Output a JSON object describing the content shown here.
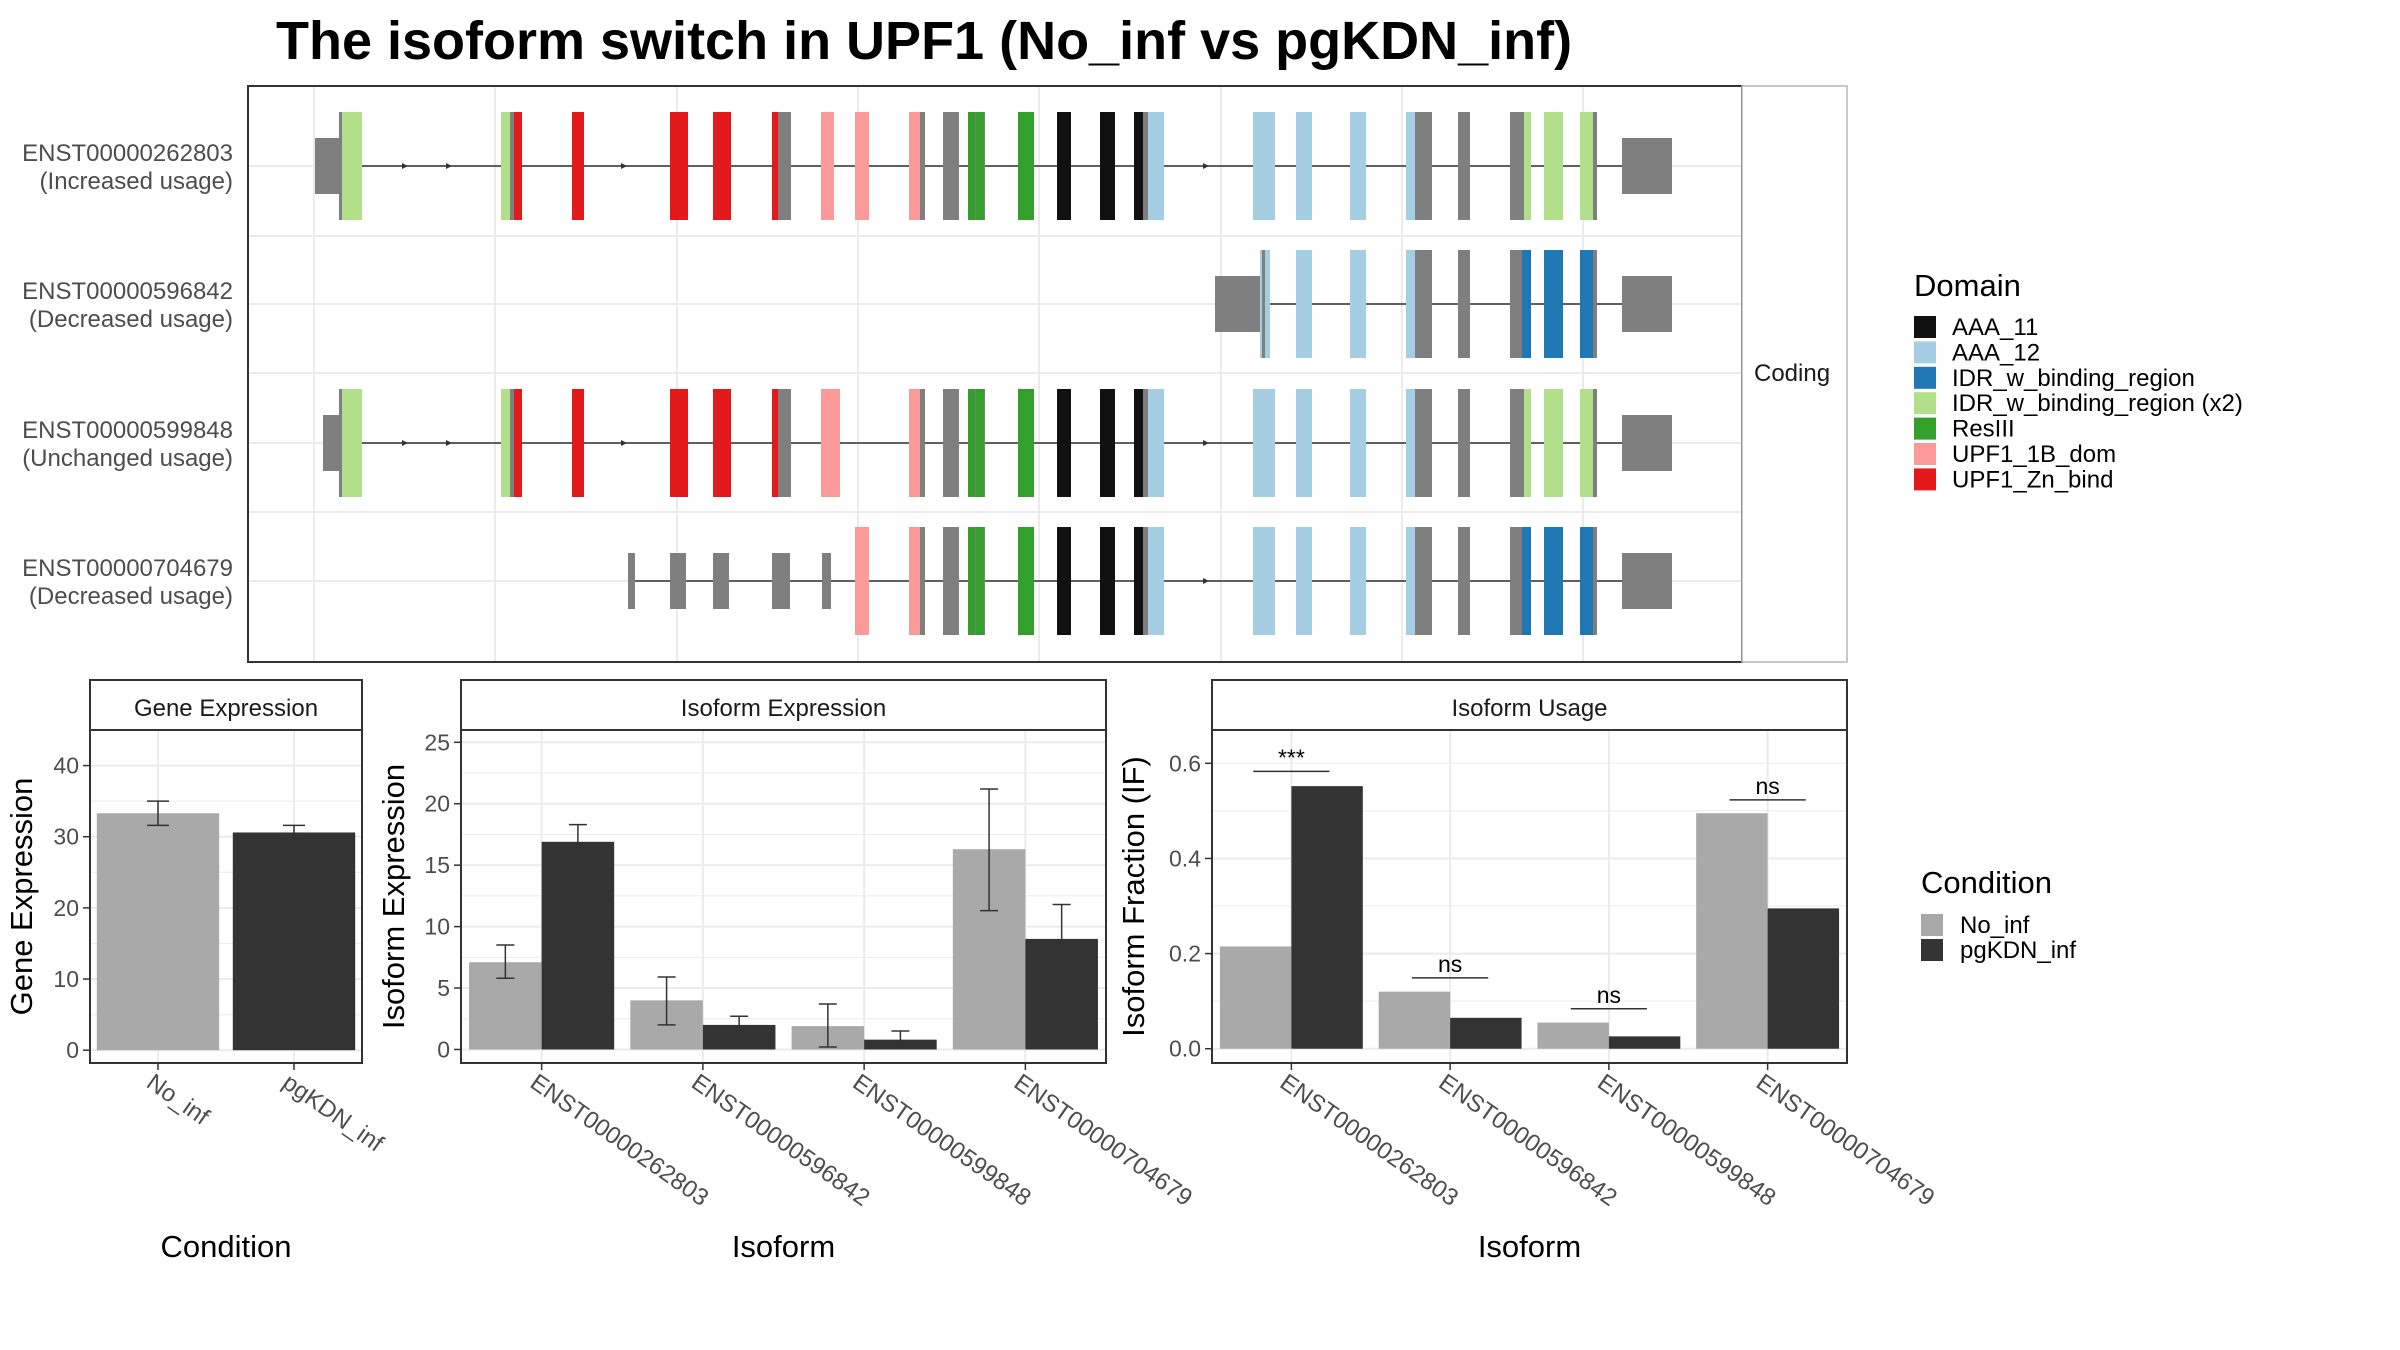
{
  "title": "The isoform switch in UPF1 (No_inf vs pgKDN_inf)",
  "transcripts": [
    {
      "id": "ENST00000262803",
      "usage": "(Increased usage)"
    },
    {
      "id": "ENST00000596842",
      "usage": "(Decreased usage)"
    },
    {
      "id": "ENST00000599848",
      "usage": "(Unchanged usage)"
    },
    {
      "id": "ENST00000704679",
      "usage": "(Decreased usage)"
    }
  ],
  "facet_label": "Coding",
  "domain_legend": {
    "title": "Domain",
    "items": [
      {
        "label": "AAA_11",
        "color": "#111111"
      },
      {
        "label": "AAA_12",
        "color": "#a6cee3"
      },
      {
        "label": "IDR_w_binding_region",
        "color": "#1f78b4"
      },
      {
        "label": "IDR_w_binding_region (x2)",
        "color": "#b2df8a"
      },
      {
        "label": "ResIII",
        "color": "#33a02c"
      },
      {
        "label": "UPF1_1B_dom",
        "color": "#fb9a99"
      },
      {
        "label": "UPF1_Zn_bind",
        "color": "#e31a1c"
      }
    ],
    "noncoding_color": "#7f7f7f"
  },
  "condition_legend": {
    "title": "Condition",
    "items": [
      {
        "label": "No_inf",
        "color": "#a9a9a9"
      },
      {
        "label": "pgKDN_inf",
        "color": "#333333"
      }
    ]
  },
  "chart_data": [
    {
      "type": "bar",
      "panel_title": "Gene Expression",
      "xlabel": "Condition",
      "ylabel": "Gene Expression",
      "categories": [
        "No_inf",
        "pgKDN_inf"
      ],
      "values": [
        33.3,
        30.6
      ],
      "errors": [
        [
          31.6,
          35.0
        ],
        [
          29.7,
          31.6
        ]
      ],
      "ylim": [
        -1.8,
        45
      ],
      "yticks": [
        0,
        10,
        20,
        30,
        40
      ],
      "grid": true
    },
    {
      "type": "bar",
      "panel_title": "Isoform Expression",
      "xlabel": "Isoform",
      "ylabel": "Isoform Expression",
      "categories": [
        "ENST00000262803",
        "ENST00000596842",
        "ENST00000599848",
        "ENST00000704679"
      ],
      "series": [
        {
          "name": "No_inf",
          "values": [
            7.1,
            4.0,
            1.9,
            16.3
          ],
          "errors": [
            [
              5.8,
              8.5
            ],
            [
              2.0,
              5.9
            ],
            [
              0.2,
              3.7
            ],
            [
              11.3,
              21.2
            ]
          ]
        },
        {
          "name": "pgKDN_inf",
          "values": [
            16.9,
            2.0,
            0.8,
            9.0
          ],
          "errors": [
            [
              15.4,
              18.3
            ],
            [
              1.2,
              2.7
            ],
            [
              0.2,
              1.5
            ],
            [
              6.2,
              11.8
            ]
          ]
        }
      ],
      "ylim": [
        -1.1,
        26
      ],
      "yticks": [
        0,
        5,
        10,
        15,
        20,
        25
      ],
      "grid": true
    },
    {
      "type": "bar",
      "panel_title": "Isoform Usage",
      "xlabel": "Isoform",
      "ylabel": "Isoform Fraction (IF)",
      "categories": [
        "ENST00000262803",
        "ENST00000596842",
        "ENST00000599848",
        "ENST00000704679"
      ],
      "series": [
        {
          "name": "No_inf",
          "values": [
            0.215,
            0.12,
            0.055,
            0.495
          ]
        },
        {
          "name": "pgKDN_inf",
          "values": [
            0.552,
            0.065,
            0.026,
            0.295
          ]
        }
      ],
      "significance": [
        "***",
        "ns",
        "ns",
        "ns"
      ],
      "significance_levels": [
        0.583,
        0.149,
        0.084,
        0.523
      ],
      "ylim": [
        -0.03,
        0.67
      ],
      "yticks": [
        0.0,
        0.2,
        0.4,
        0.6
      ],
      "ytick_labels": [
        "0.0",
        "0.2",
        "0.4",
        "0.6"
      ],
      "grid": true
    }
  ]
}
